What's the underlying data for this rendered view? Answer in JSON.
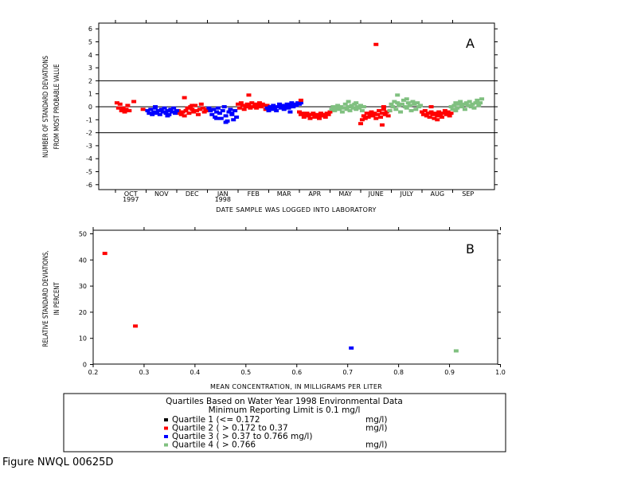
{
  "colors": {
    "q1": "#000000",
    "q2": "#ff0000",
    "q3": "#0000ff",
    "q4": "#80c080"
  },
  "chart_data": [
    {
      "type": "scatter",
      "panel": "A",
      "ylabel_line1": "NUMBER OF STANDARD DEVIATIONS",
      "ylabel_line2": "FROM MOST PROBABLE VALUE",
      "xlabel": "DATE SAMPLE WAS LOGGED INTO LABORATORY",
      "ylim": [
        -6,
        6
      ],
      "yticks": [
        "6",
        "5",
        "4",
        "3",
        "2",
        "1",
        "0",
        "-1",
        "-2",
        "-3",
        "-4",
        "-5",
        "-6"
      ],
      "xlim": [
        0,
        13
      ],
      "months": [
        "OCT",
        "NOV",
        "DEC",
        "JAN",
        "FEB",
        "MAR",
        "APR",
        "MAY",
        "JUNE",
        "JULY",
        "AUG",
        "SEP"
      ],
      "year_labels": [
        {
          "month_index": 0,
          "text": "1997"
        },
        {
          "month_index": 3,
          "text": "1998"
        }
      ],
      "reference_lines": [
        2,
        0,
        -2
      ],
      "series": [
        {
          "quartile": 2,
          "x": [
            0.05,
            0.15,
            0.25,
            0.2,
            0.35,
            0.45,
            0.6,
            0.3,
            0.4,
            0.1
          ],
          "y": [
            0.3,
            0.2,
            -0.1,
            -0.3,
            -0.2,
            -0.3,
            0.4,
            -0.4,
            0.1,
            -0.1
          ]
        },
        {
          "quartile": 2,
          "x": [
            0.9,
            2.05,
            2.1,
            2.15,
            2.2,
            2.25,
            2.3,
            2.35,
            2.4,
            2.45,
            2.5,
            2.55,
            2.6,
            2.65,
            2.7,
            2.75,
            2.8,
            2.85,
            2.9,
            2.95,
            3.0,
            2.25,
            2.5
          ],
          "y": [
            -0.2,
            -0.3,
            -0.5,
            -0.6,
            -0.4,
            -0.7,
            -0.3,
            -0.1,
            -0.5,
            0.0,
            -0.2,
            -0.4,
            0.1,
            -0.3,
            -0.6,
            -0.2,
            0.2,
            -0.1,
            -0.4,
            -0.3,
            -0.2,
            0.7,
            0.1
          ]
        },
        {
          "quartile": 3,
          "x": [
            1.05,
            1.1,
            1.15,
            1.2,
            1.25,
            1.3,
            1.35,
            1.4,
            1.45,
            1.5,
            1.55,
            1.6,
            1.65,
            1.7,
            1.75,
            1.8,
            1.85,
            1.9,
            1.95,
            2.0,
            1.3,
            1.7
          ],
          "y": [
            -0.3,
            -0.5,
            -0.2,
            -0.6,
            -0.4,
            -0.1,
            -0.5,
            -0.3,
            -0.6,
            -0.2,
            -0.4,
            -0.1,
            -0.5,
            -0.3,
            -0.6,
            -0.2,
            -0.4,
            -0.1,
            -0.5,
            -0.3,
            0.0,
            -0.7
          ]
        },
        {
          "quartile": 3,
          "x": [
            3.05,
            3.1,
            3.15,
            3.2,
            3.25,
            3.3,
            3.35,
            3.4,
            3.45,
            3.5,
            3.55,
            3.6,
            3.65,
            3.7,
            3.75,
            3.8,
            3.85,
            3.9,
            3.95,
            3.6,
            3.8,
            3.3
          ],
          "y": [
            -0.1,
            -0.3,
            -0.6,
            -0.2,
            -0.8,
            -0.4,
            -0.1,
            -0.5,
            -0.9,
            -0.3,
            0.0,
            -0.7,
            -1.1,
            -0.4,
            -0.2,
            -0.6,
            -1.0,
            -0.3,
            -0.8,
            -1.2,
            -0.5,
            -0.9
          ]
        },
        {
          "quartile": 2,
          "x": [
            4.0,
            4.05,
            4.1,
            4.15,
            4.2,
            4.25,
            4.3,
            4.35,
            4.4,
            4.45,
            4.5,
            4.55,
            4.6,
            4.65,
            4.7,
            4.75,
            4.8,
            4.85,
            4.9,
            4.95,
            4.35
          ],
          "y": [
            0.2,
            -0.1,
            0.3,
            0.1,
            -0.2,
            0.0,
            0.2,
            0.1,
            -0.1,
            0.3,
            0.0,
            0.2,
            -0.1,
            0.1,
            0.3,
            0.0,
            0.2,
            0.1,
            -0.2,
            0.1,
            0.9
          ]
        },
        {
          "quartile": 3,
          "x": [
            4.95,
            5.0,
            5.05,
            5.1,
            5.15,
            5.2,
            5.25,
            5.3,
            5.35,
            5.4,
            5.45,
            5.5,
            5.55,
            5.6,
            5.65,
            5.7,
            5.75,
            5.8,
            5.85,
            5.9,
            5.95,
            6.0,
            6.05,
            5.7
          ],
          "y": [
            -0.1,
            -0.3,
            0.0,
            -0.2,
            0.1,
            -0.1,
            -0.3,
            0.0,
            0.2,
            -0.1,
            0.1,
            -0.2,
            0.0,
            0.2,
            -0.1,
            0.1,
            0.3,
            0.0,
            0.2,
            0.1,
            0.3,
            0.2,
            0.3,
            -0.4
          ]
        },
        {
          "quartile": 2,
          "x": [
            6.0,
            6.05,
            6.1,
            6.15,
            6.2,
            6.25,
            6.3,
            6.35,
            6.4,
            6.45,
            6.5,
            6.55,
            6.6,
            6.65,
            6.7,
            6.75,
            6.8,
            6.85,
            6.9,
            6.95,
            7.0,
            6.05
          ],
          "y": [
            -0.4,
            -0.6,
            -0.5,
            -0.8,
            -0.6,
            -0.5,
            -0.7,
            -0.9,
            -0.6,
            -0.5,
            -0.8,
            -0.6,
            -0.7,
            -0.9,
            -0.5,
            -0.7,
            -0.6,
            -0.8,
            -0.5,
            -0.6,
            -0.4,
            0.5
          ]
        },
        {
          "quartile": 4,
          "x": [
            7.05,
            7.1,
            7.15,
            7.2,
            7.25,
            7.3,
            7.35,
            7.4,
            7.45,
            7.5,
            7.55,
            7.6,
            7.65,
            7.7,
            7.75,
            7.8,
            7.85,
            7.9,
            7.95,
            8.0,
            8.05,
            8.1,
            7.6,
            7.85
          ],
          "y": [
            -0.2,
            0.0,
            -0.3,
            -0.1,
            0.1,
            -0.2,
            0.0,
            -0.4,
            -0.1,
            0.2,
            -0.2,
            0.0,
            -0.3,
            0.1,
            -0.1,
            0.2,
            -0.2,
            0.0,
            -0.1,
            0.1,
            -0.3,
            0.0,
            0.4,
            0.3
          ]
        },
        {
          "quartile": 2,
          "x": [
            8.0,
            8.05,
            8.1,
            8.15,
            8.2,
            8.25,
            8.3,
            8.35,
            8.4,
            8.45,
            8.5,
            8.55,
            8.6,
            8.65,
            8.7,
            8.75,
            8.8,
            8.85,
            8.9,
            8.95,
            8.5,
            8.7,
            8.75
          ],
          "y": [
            -1.3,
            -1.0,
            -0.7,
            -0.9,
            -0.5,
            -0.8,
            -0.6,
            -0.4,
            -0.7,
            -0.5,
            -0.9,
            -0.6,
            -0.3,
            -0.8,
            -0.5,
            -0.2,
            -0.6,
            -0.4,
            -0.7,
            -0.3,
            4.8,
            -1.4,
            0.0
          ]
        },
        {
          "quartile": 4,
          "x": [
            8.95,
            9.0,
            9.05,
            9.1,
            9.15,
            9.2,
            9.25,
            9.3,
            9.35,
            9.4,
            9.45,
            9.5,
            9.55,
            9.6,
            9.65,
            9.7,
            9.75,
            9.8,
            9.85,
            9.9,
            9.95,
            9.2,
            9.5
          ],
          "y": [
            -0.3,
            0.2,
            0.0,
            0.4,
            -0.2,
            0.3,
            0.1,
            -0.4,
            0.2,
            0.5,
            0.0,
            -0.1,
            0.3,
            0.1,
            -0.3,
            0.4,
            0.2,
            -0.2,
            0.3,
            0.0,
            0.1,
            0.9,
            0.6
          ]
        },
        {
          "quartile": 2,
          "x": [
            10.0,
            10.05,
            10.1,
            10.15,
            10.2,
            10.25,
            10.3,
            10.35,
            10.4,
            10.45,
            10.5,
            10.55,
            10.6,
            10.65,
            10.7,
            10.75,
            10.8,
            10.85,
            10.9,
            10.95,
            10.3,
            10.5
          ],
          "y": [
            -0.4,
            -0.6,
            -0.3,
            -0.7,
            -0.5,
            -0.8,
            -0.4,
            -0.6,
            -0.9,
            -0.5,
            -0.7,
            -0.4,
            -0.6,
            -0.8,
            -0.5,
            -0.3,
            -0.6,
            -0.4,
            -0.7,
            -0.5,
            0.0,
            -1.0
          ]
        },
        {
          "quartile": 4,
          "x": [
            10.95,
            11.0,
            11.05,
            11.1,
            11.15,
            11.2,
            11.25,
            11.3,
            11.35,
            11.4,
            11.45,
            11.5,
            11.55,
            11.6,
            11.65,
            11.7,
            11.75,
            11.8,
            11.85,
            11.9,
            11.95,
            11.1
          ],
          "y": [
            0.0,
            -0.2,
            0.1,
            0.3,
            -0.1,
            0.2,
            0.4,
            0.0,
            0.2,
            -0.2,
            0.3,
            0.1,
            0.4,
            0.0,
            0.2,
            -0.1,
            0.3,
            0.5,
            0.1,
            0.3,
            0.6,
            -0.3
          ]
        }
      ]
    },
    {
      "type": "scatter",
      "panel": "B",
      "ylabel_line1": "RELATIVE STANDARD DEVIATIONS,",
      "ylabel_line2": "IN PERCENT",
      "xlabel": "MEAN CONCENTRATION, IN MILLIGRAMS PER LITER",
      "xlim": [
        0.2,
        1.0
      ],
      "xticks": [
        "0.2",
        "0.3",
        "0.4",
        "0.5",
        "0.6",
        "0.7",
        "0.8",
        "0.9",
        "1.0"
      ],
      "ylim": [
        0,
        50
      ],
      "yticks": [
        "50",
        "40",
        "30",
        "20",
        "10",
        "0"
      ],
      "points": [
        {
          "quartile": 2,
          "x": 0.223,
          "y": 42.5
        },
        {
          "quartile": 2,
          "x": 0.283,
          "y": 14.7
        },
        {
          "quartile": 3,
          "x": 0.707,
          "y": 6.3
        },
        {
          "quartile": 4,
          "x": 0.913,
          "y": 5.2
        }
      ]
    }
  ],
  "legend": {
    "title_line1": "Quartiles Based on Water Year 1998 Environmental Data",
    "title_line2": "Minimum Reporting Limit is 0.1 mg/l",
    "items": [
      {
        "quartile": 1,
        "label": "Quartile 1 (<= 0.172",
        "unit": "mg/l)"
      },
      {
        "quartile": 2,
        "label": "Quartile 2 ( > 0.172 to 0.37",
        "unit": "mg/l)"
      },
      {
        "quartile": 3,
        "label": "Quartile 3 ( > 0.37 to 0.766 mg/l)",
        "unit": ""
      },
      {
        "quartile": 4,
        "label": "Quartile 4 ( > 0.766",
        "unit": "mg/l)"
      }
    ]
  },
  "figure_label": "Figure NWQL 00625D"
}
